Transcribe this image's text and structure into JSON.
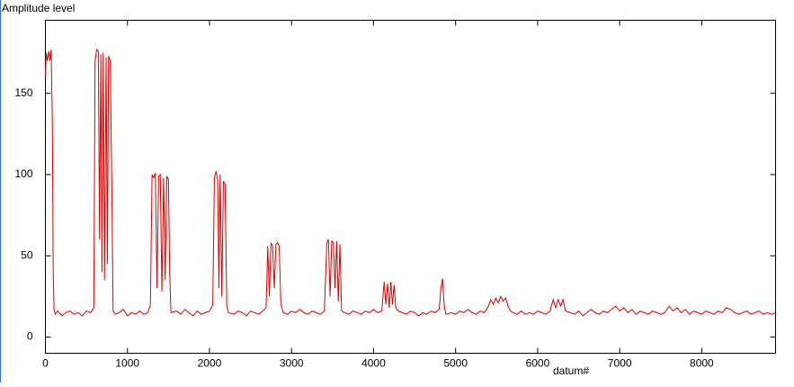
{
  "chart_data": {
    "type": "line",
    "ylabel": "Amplitude level",
    "xlabel": "datum#",
    "color": "#e00000",
    "grid": false,
    "xlim": [
      0,
      8900
    ],
    "ylim": [
      -10,
      195
    ],
    "xticks": [
      0,
      1000,
      2000,
      3000,
      4000,
      5000,
      6000,
      7000,
      8000
    ],
    "yticks": [
      0,
      50,
      100,
      150
    ],
    "x": [
      0,
      10,
      25,
      40,
      55,
      70,
      85,
      95,
      105,
      120,
      150,
      200,
      250,
      300,
      350,
      400,
      450,
      500,
      550,
      590,
      605,
      625,
      645,
      660,
      675,
      690,
      705,
      720,
      740,
      755,
      770,
      790,
      810,
      825,
      850,
      900,
      950,
      1000,
      1050,
      1100,
      1150,
      1200,
      1250,
      1280,
      1300,
      1320,
      1340,
      1360,
      1380,
      1400,
      1420,
      1440,
      1460,
      1480,
      1500,
      1515,
      1530,
      1600,
      1650,
      1700,
      1750,
      1800,
      1850,
      1900,
      1950,
      2000,
      2040,
      2060,
      2080,
      2100,
      2115,
      2130,
      2150,
      2170,
      2190,
      2210,
      2230,
      2300,
      2350,
      2400,
      2450,
      2500,
      2550,
      2600,
      2650,
      2690,
      2710,
      2730,
      2750,
      2770,
      2790,
      2810,
      2830,
      2850,
      2870,
      2900,
      2950,
      3000,
      3050,
      3100,
      3150,
      3200,
      3250,
      3300,
      3350,
      3400,
      3430,
      3450,
      3470,
      3490,
      3510,
      3530,
      3550,
      3570,
      3590,
      3610,
      3650,
      3700,
      3750,
      3800,
      3850,
      3900,
      3950,
      4000,
      4050,
      4100,
      4130,
      4150,
      4170,
      4190,
      4210,
      4230,
      4250,
      4270,
      4300,
      4350,
      4400,
      4450,
      4500,
      4550,
      4600,
      4650,
      4700,
      4750,
      4800,
      4820,
      4840,
      4860,
      4880,
      4950,
      5000,
      5050,
      5100,
      5150,
      5200,
      5250,
      5300,
      5350,
      5400,
      5430,
      5460,
      5490,
      5520,
      5550,
      5580,
      5610,
      5640,
      5670,
      5700,
      5750,
      5800,
      5850,
      5900,
      5950,
      6000,
      6050,
      6100,
      6150,
      6190,
      6220,
      6250,
      6280,
      6310,
      6340,
      6400,
      6450,
      6500,
      6550,
      6600,
      6650,
      6700,
      6750,
      6800,
      6850,
      6900,
      6950,
      7000,
      7050,
      7100,
      7150,
      7200,
      7250,
      7300,
      7350,
      7400,
      7450,
      7500,
      7550,
      7600,
      7650,
      7700,
      7750,
      7800,
      7850,
      7900,
      7950,
      8000,
      8050,
      8100,
      8150,
      8200,
      8250,
      8300,
      8350,
      8400,
      8450,
      8500,
      8550,
      8600,
      8650,
      8700,
      8750,
      8800,
      8850,
      8900
    ],
    "values": [
      160,
      175,
      170,
      176,
      170,
      177,
      130,
      40,
      17,
      14,
      16,
      13,
      15,
      16,
      14,
      15,
      13,
      16,
      15,
      18,
      170,
      177,
      176,
      60,
      174,
      40,
      175,
      35,
      172,
      45,
      173,
      170,
      90,
      16,
      14,
      15,
      17,
      13,
      15,
      14,
      16,
      14,
      15,
      20,
      100,
      98,
      101,
      30,
      99,
      100,
      28,
      98,
      35,
      99,
      97,
      40,
      15,
      16,
      14,
      17,
      15,
      13,
      16,
      14,
      15,
      16,
      20,
      98,
      102,
      96,
      30,
      100,
      25,
      96,
      94,
      20,
      15,
      14,
      16,
      15,
      13,
      16,
      15,
      14,
      16,
      18,
      56,
      25,
      58,
      56,
      30,
      57,
      58,
      56,
      20,
      15,
      14,
      16,
      15,
      17,
      15,
      14,
      16,
      15,
      14,
      16,
      58,
      60,
      25,
      59,
      58,
      30,
      59,
      22,
      57,
      16,
      15,
      14,
      16,
      15,
      14,
      16,
      15,
      17,
      15,
      16,
      34,
      20,
      33,
      18,
      34,
      20,
      32,
      18,
      16,
      15,
      14,
      16,
      15,
      13,
      15,
      14,
      16,
      15,
      17,
      30,
      36,
      20,
      14,
      15,
      14,
      16,
      15,
      17,
      15,
      14,
      16,
      15,
      19,
      23,
      20,
      24,
      21,
      25,
      22,
      24,
      19,
      16,
      15,
      14,
      16,
      14,
      15,
      14,
      16,
      15,
      14,
      16,
      23,
      18,
      23,
      19,
      23,
      16,
      15,
      14,
      16,
      13,
      15,
      17,
      15,
      14,
      16,
      15,
      17,
      19,
      16,
      18,
      15,
      17,
      14,
      16,
      15,
      14,
      16,
      15,
      14,
      15,
      19,
      16,
      18,
      15,
      17,
      14,
      16,
      15,
      14,
      16,
      15,
      14,
      16,
      15,
      18,
      17,
      15,
      14,
      15,
      16,
      14,
      15,
      16,
      14,
      15,
      14,
      15
    ]
  }
}
